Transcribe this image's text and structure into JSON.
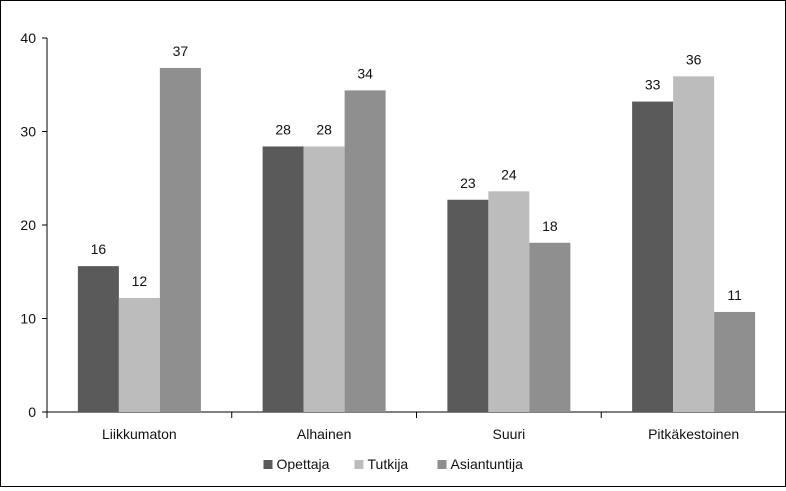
{
  "chart_data": {
    "type": "bar",
    "categories": [
      "Liikkumaton",
      "Alhainen",
      "Suuri",
      "Pitkäkestoinen"
    ],
    "series": [
      {
        "name": "Opettaja",
        "values": [
          16,
          28,
          23,
          33
        ],
        "color": "#5a5a5a"
      },
      {
        "name": "Tutkija",
        "values": [
          12,
          28,
          24,
          36
        ],
        "color": "#bcbcbc"
      },
      {
        "name": "Asiantuntija",
        "values": [
          37,
          34,
          18,
          11
        ],
        "color": "#8f8f8f"
      }
    ],
    "data_values": [
      [
        15.6,
        28.4,
        22.7,
        33.2
      ],
      [
        12.2,
        28.4,
        23.6,
        35.9
      ],
      [
        36.8,
        34.4,
        18.1,
        10.7
      ]
    ],
    "ylim": [
      0,
      40
    ],
    "yticks": [
      0,
      10,
      20,
      30,
      40
    ],
    "title": "",
    "xlabel": "",
    "ylabel": "",
    "grid": false,
    "legend": "bottom"
  }
}
